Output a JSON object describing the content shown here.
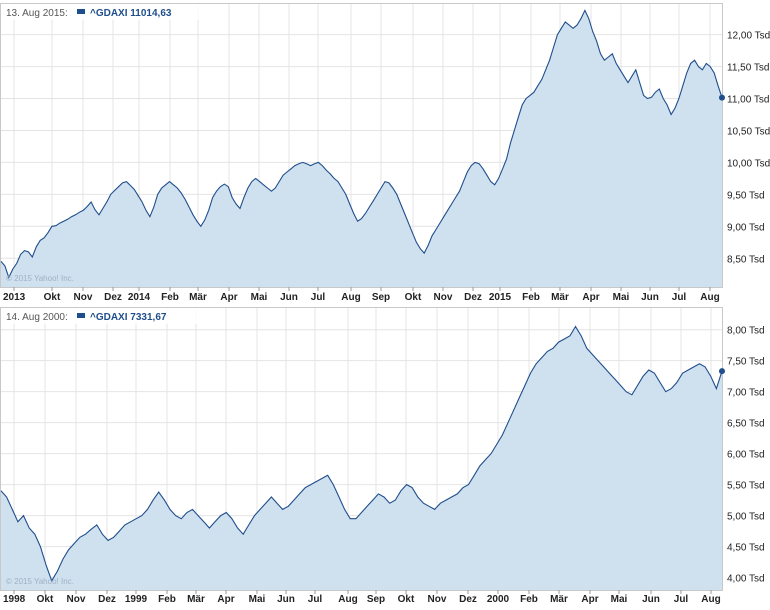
{
  "chart_data": [
    {
      "type": "area",
      "legend": {
        "date": "13. Aug 2015:",
        "series": "^GDAXI 11014,63"
      },
      "watermark": "© 2015 Yahoo! Inc.",
      "series": [
        {
          "name": "^GDAXI",
          "values": [
            8450,
            8380,
            8200,
            8330,
            8420,
            8560,
            8620,
            8600,
            8520,
            8680,
            8780,
            8820,
            8900,
            9000,
            9010,
            9050,
            9080,
            9110,
            9150,
            9180,
            9220,
            9250,
            9310,
            9380,
            9260,
            9180,
            9280,
            9380,
            9500,
            9560,
            9620,
            9680,
            9700,
            9640,
            9580,
            9480,
            9380,
            9250,
            9150,
            9300,
            9500,
            9600,
            9650,
            9700,
            9650,
            9600,
            9520,
            9420,
            9300,
            9180,
            9080,
            9000,
            9100,
            9250,
            9450,
            9550,
            9620,
            9660,
            9620,
            9450,
            9350,
            9280,
            9450,
            9600,
            9700,
            9750,
            9700,
            9650,
            9600,
            9550,
            9600,
            9700,
            9800,
            9850,
            9900,
            9950,
            9980,
            10000,
            9980,
            9950,
            9980,
            10000,
            9950,
            9880,
            9820,
            9750,
            9700,
            9600,
            9500,
            9350,
            9200,
            9080,
            9120,
            9200,
            9300,
            9400,
            9500,
            9600,
            9700,
            9680,
            9600,
            9500,
            9350,
            9200,
            9050,
            8900,
            8750,
            8650,
            8580,
            8700,
            8850,
            8950,
            9050,
            9150,
            9250,
            9350,
            9450,
            9550,
            9700,
            9850,
            9950,
            10000,
            9980,
            9900,
            9800,
            9700,
            9650,
            9750,
            9900,
            10050,
            10300,
            10500,
            10700,
            10900,
            11000,
            11050,
            11100,
            11200,
            11300,
            11450,
            11600,
            11800,
            12000,
            12100,
            12200,
            12150,
            12100,
            12150,
            12250,
            12380,
            12250,
            12050,
            11900,
            11700,
            11600,
            11650,
            11700,
            11550,
            11450,
            11350,
            11250,
            11350,
            11450,
            11250,
            11050,
            11000,
            11020,
            11100,
            11150,
            11000,
            10900,
            10750,
            10850,
            11000,
            11200,
            11400,
            11550,
            11600,
            11500,
            11450,
            11550,
            11500,
            11400,
            11200,
            11014.63
          ]
        }
      ],
      "ylim": [
        8050,
        12480
      ],
      "yticks": [
        "8,50 Tsd",
        "9,00 Tsd",
        "9,50 Tsd",
        "10,00 Tsd",
        "10,50 Tsd",
        "11,00 Tsd",
        "11,50 Tsd",
        "12,00 Tsd"
      ],
      "ytick_values": [
        8500,
        9000,
        9500,
        10000,
        10500,
        11000,
        11500,
        12000
      ],
      "xticks": [
        "2013",
        "Okt",
        "Nov",
        "Dez",
        "2014",
        "Feb",
        "Mär",
        "Apr",
        "Mai",
        "Jun",
        "Jul",
        "Aug",
        "Sep",
        "Okt",
        "Nov",
        "Dez",
        "2015",
        "Feb",
        "Mär",
        "Apr",
        "Mai",
        "Jun",
        "Jul",
        "Aug"
      ],
      "grid": true
    },
    {
      "type": "area",
      "legend": {
        "date": "14. Aug 2000:",
        "series": "^GDAXI 7331,67"
      },
      "watermark": "© 2015 Yahoo! Inc.",
      "series": [
        {
          "name": "^GDAXI",
          "values": [
            5400,
            5300,
            5100,
            4900,
            5000,
            4800,
            4700,
            4500,
            4200,
            3950,
            4100,
            4300,
            4450,
            4550,
            4650,
            4700,
            4780,
            4850,
            4700,
            4600,
            4650,
            4750,
            4850,
            4900,
            4950,
            5000,
            5100,
            5250,
            5380,
            5250,
            5100,
            5000,
            4950,
            5050,
            5100,
            5000,
            4900,
            4800,
            4900,
            5000,
            5050,
            4950,
            4800,
            4700,
            4850,
            5000,
            5100,
            5200,
            5300,
            5200,
            5100,
            5150,
            5250,
            5350,
            5450,
            5500,
            5550,
            5600,
            5650,
            5500,
            5300,
            5100,
            4950,
            4950,
            5050,
            5150,
            5250,
            5350,
            5300,
            5200,
            5250,
            5400,
            5500,
            5450,
            5300,
            5200,
            5150,
            5100,
            5200,
            5250,
            5300,
            5350,
            5450,
            5500,
            5650,
            5800,
            5900,
            6000,
            6150,
            6300,
            6500,
            6700,
            6900,
            7100,
            7300,
            7450,
            7550,
            7650,
            7700,
            7800,
            7850,
            7900,
            8050,
            7900,
            7700,
            7600,
            7500,
            7400,
            7300,
            7200,
            7100,
            7000,
            6950,
            7100,
            7250,
            7350,
            7300,
            7150,
            7000,
            7050,
            7150,
            7300,
            7350,
            7400,
            7450,
            7400,
            7250,
            7050,
            7331.67
          ]
        }
      ],
      "ylim": [
        3800,
        8350
      ],
      "yticks": [
        "4,00 Tsd",
        "4,50 Tsd",
        "5,00 Tsd",
        "5,50 Tsd",
        "6,00 Tsd",
        "6,50 Tsd",
        "7,00 Tsd",
        "7,50 Tsd",
        "8,00 Tsd"
      ],
      "ytick_values": [
        4000,
        4500,
        5000,
        5500,
        6000,
        6500,
        7000,
        7500,
        8000
      ],
      "xticks": [
        "1998",
        "Okt",
        "Nov",
        "Dez",
        "1999",
        "Feb",
        "Mär",
        "Apr",
        "Mai",
        "Jun",
        "Jul",
        "Aug",
        "Sep",
        "Okt",
        "Nov",
        "Dez",
        "2000",
        "Feb",
        "Mär",
        "Apr",
        "Mai",
        "Jun",
        "Jul",
        "Aug"
      ],
      "grid": true
    }
  ]
}
